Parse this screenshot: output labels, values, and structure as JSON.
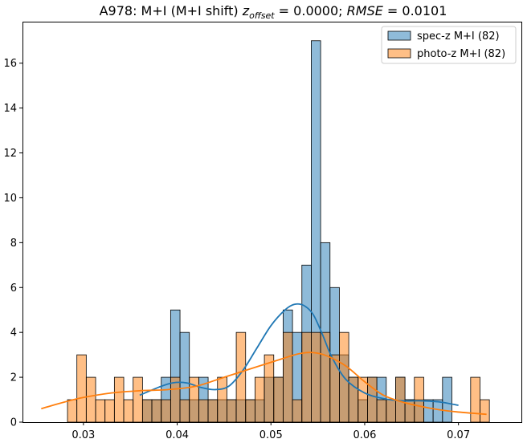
{
  "chart_data": {
    "type": "histogram",
    "title": {
      "prefix": "A978: M+I (M+I shift) ",
      "z_symbol": "z",
      "z_subscript": "offset",
      "z_value": " = 0.0000; ",
      "rmse_symbol": "RMSE",
      "rmse_value": " = 0.0101"
    },
    "xlabel": "",
    "ylabel": "",
    "xlim": [
      0.0235,
      0.0768
    ],
    "ylim": [
      0,
      17.85
    ],
    "x_ticks": [
      0.03,
      0.04,
      0.05,
      0.06,
      0.07
    ],
    "x_tick_labels": [
      "0.03",
      "0.04",
      "0.05",
      "0.06",
      "0.07"
    ],
    "y_ticks": [
      0,
      2,
      4,
      6,
      8,
      10,
      12,
      14,
      16
    ],
    "y_tick_labels": [
      "0",
      "2",
      "4",
      "6",
      "8",
      "10",
      "12",
      "14",
      "16"
    ],
    "bin_start": 0.0283,
    "bin_width": 0.001,
    "legend_position": "upper right",
    "series": [
      {
        "name": "spec-z M+I (82)",
        "color": "#1f77b4",
        "counts": [
          0,
          0,
          0,
          0,
          0,
          0,
          0,
          0,
          1,
          1,
          2,
          5,
          4,
          1,
          2,
          1,
          1,
          1,
          1,
          1,
          1,
          2,
          2,
          5,
          4,
          7,
          17,
          8,
          6,
          3,
          2,
          1,
          2,
          2,
          1,
          2,
          1,
          1,
          1,
          1,
          2,
          0,
          0,
          0,
          0
        ],
        "kde_x": [
          0.036,
          0.038,
          0.0395,
          0.041,
          0.0425,
          0.044,
          0.0455,
          0.047,
          0.0485,
          0.05,
          0.0515,
          0.0525,
          0.0535,
          0.0545,
          0.0555,
          0.0565,
          0.058,
          0.06,
          0.062,
          0.064,
          0.066,
          0.068,
          0.07
        ],
        "kde_y": [
          1.2,
          1.55,
          1.75,
          1.75,
          1.55,
          1.45,
          1.6,
          2.3,
          3.3,
          4.3,
          5.0,
          5.25,
          5.2,
          4.8,
          3.9,
          2.9,
          1.9,
          1.3,
          1.05,
          0.95,
          0.95,
          0.9,
          0.75
        ]
      },
      {
        "name": "photo-z M+I (82)",
        "color": "#ff7f0e",
        "counts": [
          1,
          3,
          2,
          1,
          1,
          2,
          1,
          2,
          1,
          1,
          1,
          2,
          1,
          2,
          1,
          1,
          2,
          1,
          4,
          1,
          2,
          3,
          2,
          4,
          1,
          4,
          4,
          4,
          3,
          4,
          2,
          2,
          2,
          1,
          1,
          2,
          1,
          2,
          0,
          0,
          0,
          0,
          0,
          2,
          1
        ],
        "kde_x": [
          0.0255,
          0.028,
          0.03,
          0.033,
          0.036,
          0.039,
          0.042,
          0.045,
          0.048,
          0.051,
          0.053,
          0.0545,
          0.056,
          0.058,
          0.06,
          0.062,
          0.064,
          0.066,
          0.068,
          0.07,
          0.073
        ],
        "kde_y": [
          0.6,
          0.9,
          1.1,
          1.3,
          1.4,
          1.45,
          1.6,
          2.0,
          2.4,
          2.8,
          3.05,
          3.1,
          2.95,
          2.5,
          1.8,
          1.2,
          0.9,
          0.7,
          0.55,
          0.45,
          0.35
        ]
      }
    ]
  }
}
